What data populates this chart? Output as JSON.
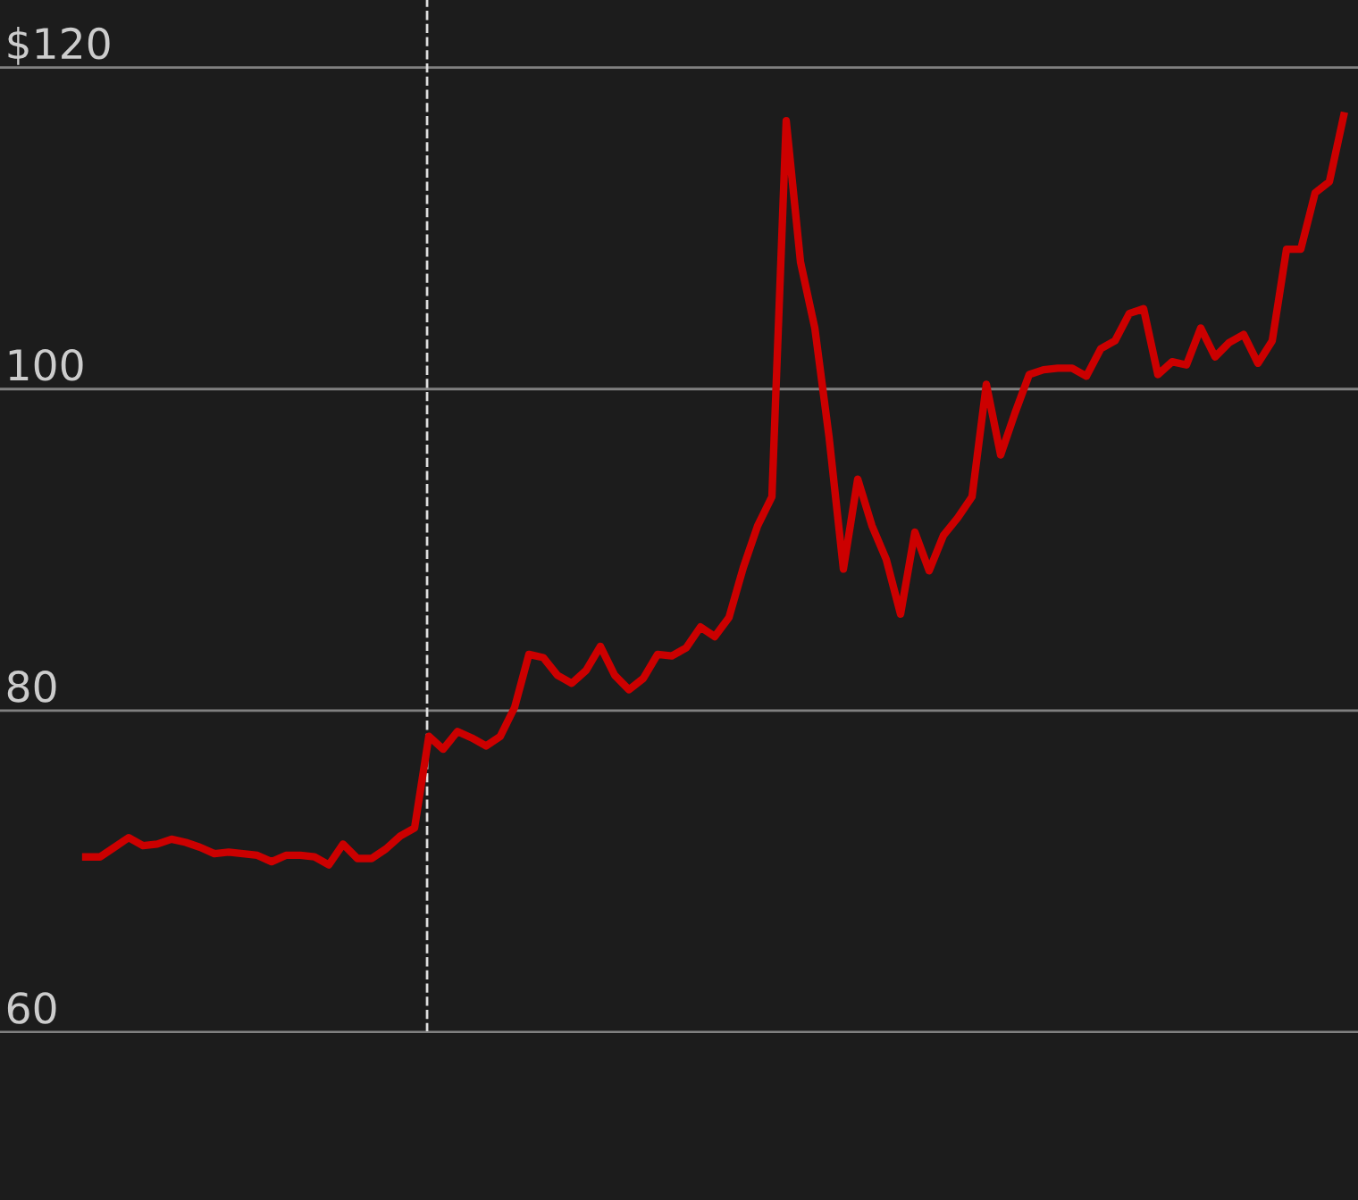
{
  "chart_data": {
    "type": "line",
    "grid": "y",
    "legend": false,
    "marker": "none",
    "line_style": "solid",
    "categories": [
      null,
      null,
      null,
      null,
      null,
      null,
      null,
      null,
      null,
      null,
      null,
      null,
      null,
      null,
      null,
      null,
      null,
      null,
      null,
      null,
      null,
      null,
      null,
      null,
      null,
      null,
      null,
      null,
      null,
      null,
      null,
      null,
      null,
      null,
      null,
      null,
      null,
      null,
      null,
      null,
      null,
      null,
      null,
      null,
      null,
      null,
      null,
      null,
      null,
      null,
      null,
      null,
      null,
      null,
      null,
      null,
      null,
      null,
      null,
      null,
      null,
      null,
      null,
      null,
      null,
      null,
      null,
      null,
      null,
      null,
      null,
      null,
      null,
      null,
      null,
      null,
      null,
      null,
      null,
      null,
      null,
      null,
      null,
      null,
      null,
      null,
      null,
      null,
      null
    ],
    "series": [
      {
        "color": "#cc0000",
        "values": [
          70.9,
          70.9,
          71.5,
          72.1,
          71.6,
          71.7,
          72.0,
          71.8,
          71.5,
          71.1,
          71.2,
          71.1,
          71.0,
          70.6,
          71.0,
          71.0,
          70.9,
          70.4,
          71.7,
          70.8,
          70.8,
          71.4,
          72.2,
          72.7,
          78.4,
          77.6,
          78.7,
          78.3,
          77.8,
          78.4,
          80.2,
          83.5,
          83.3,
          82.2,
          81.7,
          82.5,
          84.0,
          82.2,
          81.3,
          82.0,
          83.5,
          83.4,
          83.9,
          85.2,
          84.6,
          85.8,
          88.9,
          91.5,
          93.3,
          116.7,
          107.9,
          103.8,
          97.0,
          88.8,
          94.4,
          91.5,
          89.4,
          86.0,
          91.1,
          88.7,
          90.9,
          92.0,
          93.3,
          100.3,
          95.9,
          98.5,
          100.9,
          101.2,
          101.3,
          101.3,
          100.8,
          102.5,
          103.0,
          104.7,
          105.0,
          100.9,
          101.7,
          101.5,
          103.8,
          102.0,
          102.9,
          103.4,
          101.6,
          103.0,
          108.7,
          108.7,
          112.2,
          112.9,
          117.0
        ]
      }
    ],
    "ylim": [
      60,
      124.2
    ],
    "yticks": [
      {
        "value": 60,
        "label": "60"
      },
      {
        "value": 80,
        "label": "80"
      },
      {
        "value": 100,
        "label": "100"
      },
      {
        "value": 120,
        "label": "$120"
      }
    ],
    "tick_labels": "y"
  }
}
